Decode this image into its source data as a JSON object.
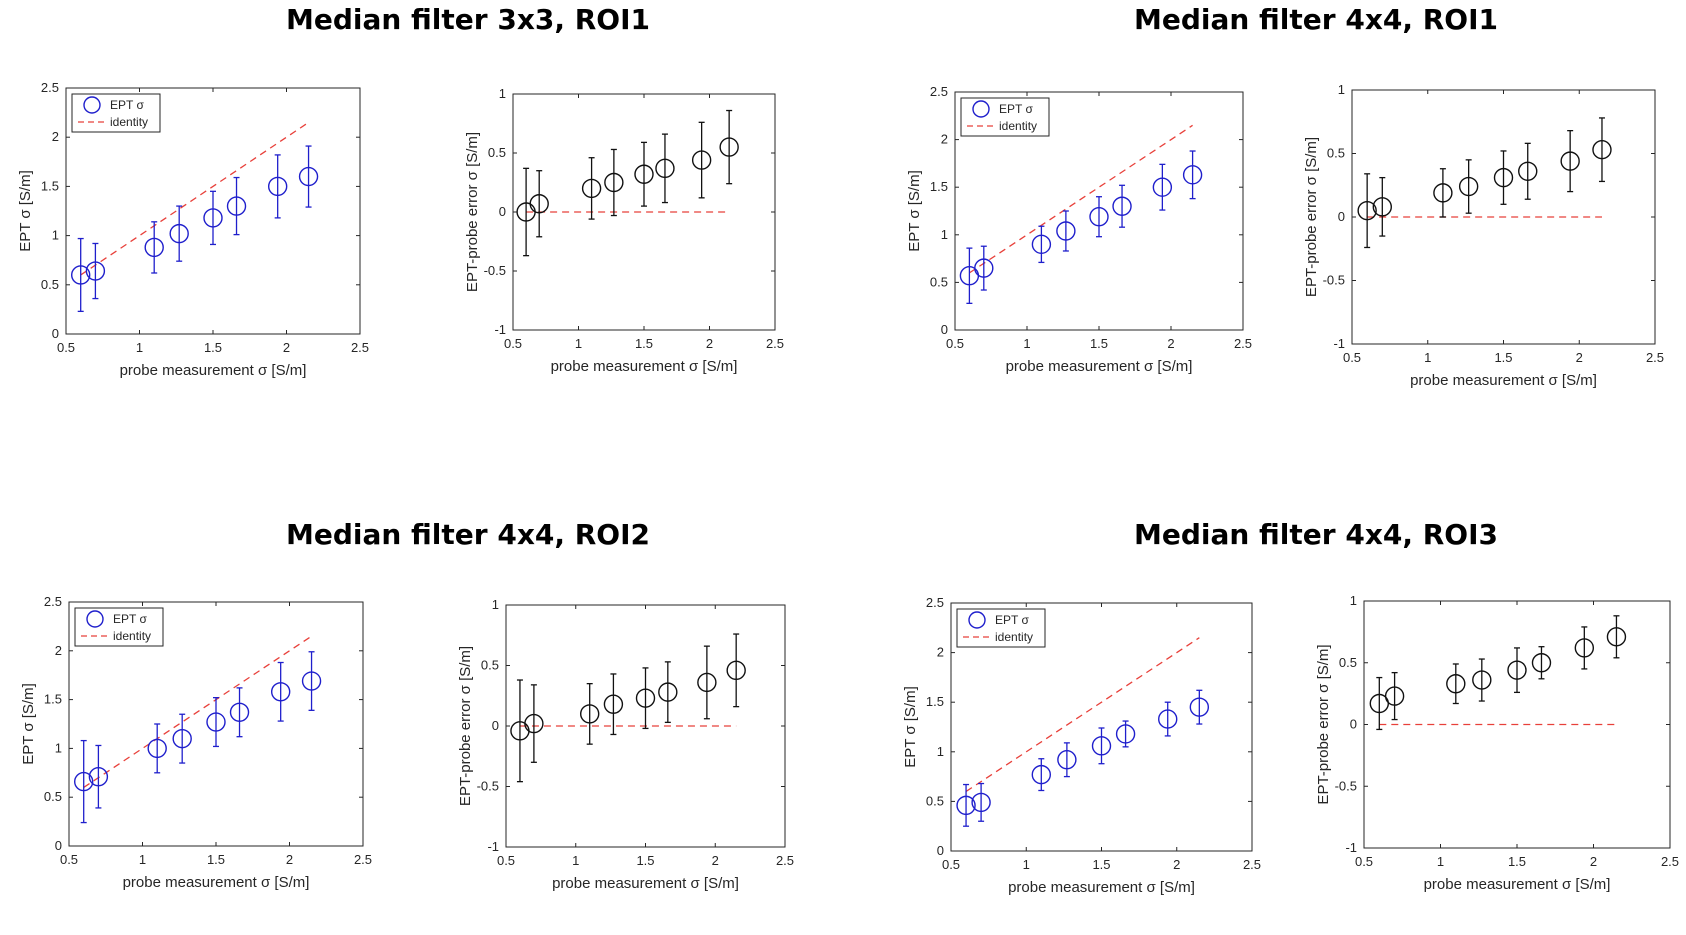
{
  "colors": {
    "ept": "#1f1fcc",
    "err": "#111111",
    "identity": "#e8403a",
    "axis": "#262626"
  },
  "panels": [
    {
      "title": "Median filter 3x3, ROI1"
    },
    {
      "title": "Median filter 4x4, ROI1"
    },
    {
      "title": "Median filter 4x4, ROI2"
    },
    {
      "title": "Median filter 4x4, ROI3"
    }
  ],
  "chart_data": [
    {
      "type": "scatter",
      "panel": "Median filter 3x3, ROI1",
      "role": "ept",
      "xlabel": "probe measurement σ [S/m]",
      "ylabel": "EPT σ  [S/m]",
      "xlim": [
        0.5,
        2.5
      ],
      "ylim": [
        0,
        2.5
      ],
      "xticks": [
        "0.5",
        "1",
        "1.5",
        "2",
        "2.5"
      ],
      "yticks": [
        "0",
        "0.5",
        "1",
        "1.5",
        "2",
        "2.5"
      ],
      "x": [
        0.6,
        0.7,
        1.1,
        1.27,
        1.5,
        1.66,
        1.94,
        2.15
      ],
      "y": [
        0.6,
        0.64,
        0.88,
        1.02,
        1.18,
        1.3,
        1.5,
        1.6
      ],
      "err": [
        0.37,
        0.28,
        0.26,
        0.28,
        0.27,
        0.29,
        0.32,
        0.31
      ],
      "legend": [
        "EPT σ",
        "identity"
      ],
      "legend_loc": "top-left"
    },
    {
      "type": "scatter",
      "panel": "Median filter 3x3, ROI1",
      "role": "error",
      "xlabel": "probe measurement σ [S/m]",
      "ylabel": "EPT-probe error σ  [S/m]",
      "xlim": [
        0.5,
        2.5
      ],
      "ylim": [
        -1,
        1
      ],
      "xticks": [
        "0.5",
        "1",
        "1.5",
        "2",
        "2.5"
      ],
      "yticks": [
        "-1",
        "-0.5",
        "0",
        "0.5",
        "1"
      ],
      "x": [
        0.6,
        0.7,
        1.1,
        1.27,
        1.5,
        1.66,
        1.94,
        2.15
      ],
      "y": [
        0.0,
        0.07,
        0.2,
        0.25,
        0.32,
        0.37,
        0.44,
        0.55
      ],
      "err": [
        0.37,
        0.28,
        0.26,
        0.28,
        0.27,
        0.29,
        0.32,
        0.31
      ]
    },
    {
      "type": "scatter",
      "panel": "Median filter 4x4, ROI1",
      "role": "ept",
      "xlabel": "probe measurement σ [S/m]",
      "ylabel": "EPT σ  [S/m]",
      "xlim": [
        0.5,
        2.5
      ],
      "ylim": [
        0,
        2.5
      ],
      "xticks": [
        "0.5",
        "1",
        "1.5",
        "2",
        "2.5"
      ],
      "yticks": [
        "0",
        "0.5",
        "1",
        "1.5",
        "2",
        "2.5"
      ],
      "x": [
        0.6,
        0.7,
        1.1,
        1.27,
        1.5,
        1.66,
        1.94,
        2.15
      ],
      "y": [
        0.57,
        0.65,
        0.9,
        1.04,
        1.19,
        1.3,
        1.5,
        1.63
      ],
      "err": [
        0.29,
        0.23,
        0.19,
        0.21,
        0.21,
        0.22,
        0.24,
        0.25
      ],
      "legend": [
        "EPT σ",
        "identity"
      ],
      "legend_loc": "top-left"
    },
    {
      "type": "scatter",
      "panel": "Median filter 4x4, ROI1",
      "role": "error",
      "xlabel": "probe measurement σ [S/m]",
      "ylabel": "EPT-probe error σ  [S/m]",
      "xlim": [
        0.5,
        2.5
      ],
      "ylim": [
        -1,
        1
      ],
      "xticks": [
        "0.5",
        "1",
        "1.5",
        "2",
        "2.5"
      ],
      "yticks": [
        "-1",
        "-0.5",
        "0",
        "0.5",
        "1"
      ],
      "x": [
        0.6,
        0.7,
        1.1,
        1.27,
        1.5,
        1.66,
        1.94,
        2.15
      ],
      "y": [
        0.05,
        0.08,
        0.19,
        0.24,
        0.31,
        0.36,
        0.44,
        0.53
      ],
      "err": [
        0.29,
        0.23,
        0.19,
        0.21,
        0.21,
        0.22,
        0.24,
        0.25
      ]
    },
    {
      "type": "scatter",
      "panel": "Median filter 4x4, ROI2",
      "role": "ept",
      "xlabel": "probe measurement σ [S/m]",
      "ylabel": "EPT σ  [S/m]",
      "xlim": [
        0.5,
        2.5
      ],
      "ylim": [
        0,
        2.5
      ],
      "xticks": [
        "0.5",
        "1",
        "1.5",
        "2",
        "2.5"
      ],
      "yticks": [
        "0",
        "0.5",
        "1",
        "1.5",
        "2",
        "2.5"
      ],
      "x": [
        0.6,
        0.7,
        1.1,
        1.27,
        1.5,
        1.66,
        1.94,
        2.15
      ],
      "y": [
        0.66,
        0.71,
        1.0,
        1.1,
        1.27,
        1.37,
        1.58,
        1.69
      ],
      "err": [
        0.42,
        0.32,
        0.25,
        0.25,
        0.25,
        0.25,
        0.3,
        0.3
      ],
      "legend": [
        "EPT σ",
        "identity"
      ],
      "legend_loc": "top-left"
    },
    {
      "type": "scatter",
      "panel": "Median filter 4x4, ROI2",
      "role": "error",
      "xlabel": "probe measurement σ [S/m]",
      "ylabel": "EPT-probe error σ  [S/m]",
      "xlim": [
        0.5,
        2.5
      ],
      "ylim": [
        -1,
        1
      ],
      "xticks": [
        "0.5",
        "1",
        "1.5",
        "2",
        "2.5"
      ],
      "yticks": [
        "-1",
        "-0.5",
        "0",
        "0.5",
        "1"
      ],
      "x": [
        0.6,
        0.7,
        1.1,
        1.27,
        1.5,
        1.66,
        1.94,
        2.15
      ],
      "y": [
        -0.04,
        0.02,
        0.1,
        0.18,
        0.23,
        0.28,
        0.36,
        0.46
      ],
      "err": [
        0.42,
        0.32,
        0.25,
        0.25,
        0.25,
        0.25,
        0.3,
        0.3
      ]
    },
    {
      "type": "scatter",
      "panel": "Median filter 4x4, ROI3",
      "role": "ept",
      "xlabel": "probe measurement σ [S/m]",
      "ylabel": "EPT σ  [S/m]",
      "xlim": [
        0.5,
        2.5
      ],
      "ylim": [
        0,
        2.5
      ],
      "xticks": [
        "0.5",
        "1",
        "1.5",
        "2",
        "2.5"
      ],
      "yticks": [
        "0",
        "0.5",
        "1",
        "1.5",
        "2",
        "2.5"
      ],
      "x": [
        0.6,
        0.7,
        1.1,
        1.27,
        1.5,
        1.66,
        1.94,
        2.15
      ],
      "y": [
        0.46,
        0.49,
        0.77,
        0.92,
        1.06,
        1.18,
        1.33,
        1.45
      ],
      "err": [
        0.21,
        0.19,
        0.16,
        0.17,
        0.18,
        0.13,
        0.17,
        0.17
      ],
      "legend": [
        "EPT σ",
        "identity"
      ],
      "legend_loc": "top-left"
    },
    {
      "type": "scatter",
      "panel": "Median filter 4x4, ROI3",
      "role": "error",
      "xlabel": "probe measurement σ [S/m]",
      "ylabel": "EPT-probe error σ  [S/m]",
      "xlim": [
        0.5,
        2.5
      ],
      "ylim": [
        -1,
        1
      ],
      "xticks": [
        "0.5",
        "1",
        "1.5",
        "2",
        "2.5"
      ],
      "yticks": [
        "-1",
        "-0.5",
        "0",
        "0.5",
        "1"
      ],
      "x": [
        0.6,
        0.7,
        1.1,
        1.27,
        1.5,
        1.66,
        1.94,
        2.15
      ],
      "y": [
        0.17,
        0.23,
        0.33,
        0.36,
        0.44,
        0.5,
        0.62,
        0.71
      ],
      "err": [
        0.21,
        0.19,
        0.16,
        0.17,
        0.18,
        0.13,
        0.17,
        0.17
      ]
    }
  ]
}
